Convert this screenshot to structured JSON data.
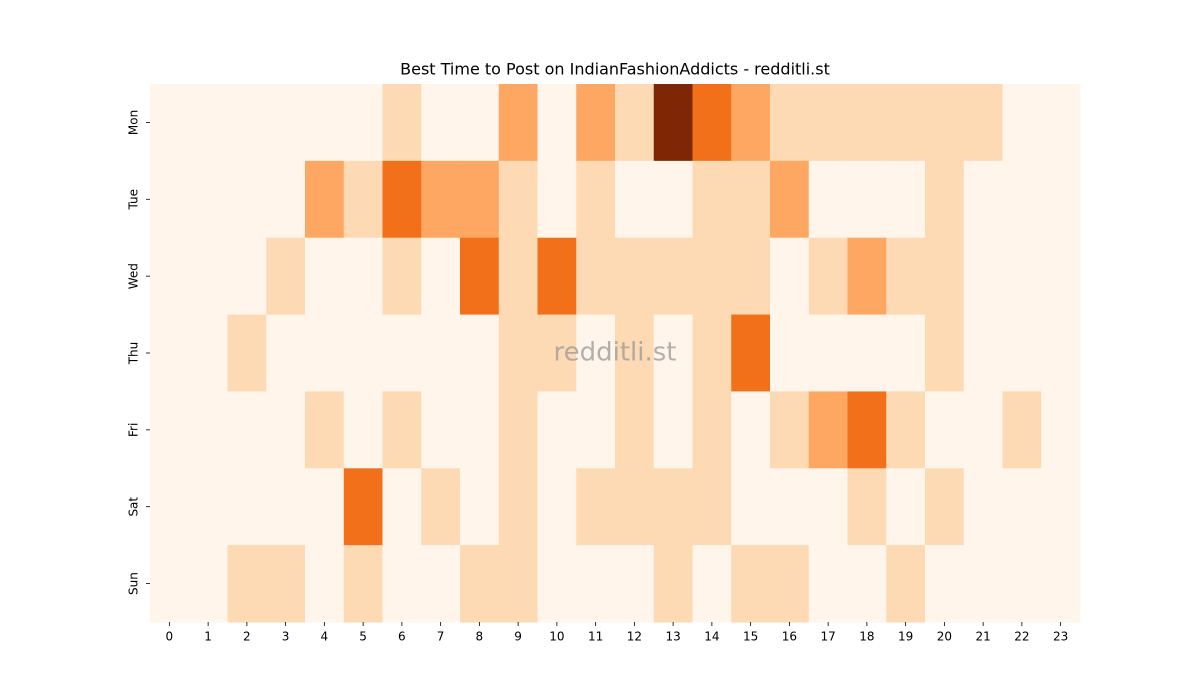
{
  "chart_data": {
    "type": "heatmap",
    "title": "Best Time to Post on IndianFashionAddicts - redditli.st",
    "watermark": "redditli.st",
    "x": [
      0,
      1,
      2,
      3,
      4,
      5,
      6,
      7,
      8,
      9,
      10,
      11,
      12,
      13,
      14,
      15,
      16,
      17,
      18,
      19,
      20,
      21,
      22,
      23
    ],
    "y": [
      "Mon",
      "Tue",
      "Wed",
      "Thu",
      "Fri",
      "Sat",
      "Sun"
    ],
    "values": [
      [
        0,
        0,
        0,
        0,
        0,
        0,
        1,
        0,
        0,
        2,
        0,
        2,
        1,
        4,
        3,
        2,
        1,
        1,
        1,
        1,
        1,
        1,
        0,
        0
      ],
      [
        0,
        0,
        0,
        0,
        2,
        1,
        3,
        2,
        2,
        1,
        0,
        1,
        0,
        0,
        1,
        1,
        2,
        0,
        0,
        0,
        1,
        0,
        0,
        0
      ],
      [
        0,
        0,
        0,
        1,
        0,
        0,
        1,
        0,
        3,
        1,
        3,
        1,
        1,
        1,
        1,
        1,
        0,
        1,
        2,
        1,
        1,
        0,
        0,
        0
      ],
      [
        0,
        0,
        1,
        0,
        0,
        0,
        0,
        0,
        0,
        1,
        1,
        0,
        1,
        0,
        1,
        3,
        0,
        0,
        0,
        0,
        1,
        0,
        0,
        0
      ],
      [
        0,
        0,
        0,
        0,
        1,
        0,
        1,
        0,
        0,
        1,
        0,
        0,
        1,
        0,
        1,
        0,
        1,
        2,
        3,
        1,
        0,
        0,
        1,
        0
      ],
      [
        0,
        0,
        0,
        0,
        0,
        3,
        0,
        1,
        0,
        1,
        0,
        1,
        1,
        1,
        1,
        0,
        0,
        0,
        1,
        0,
        1,
        0,
        0,
        0
      ],
      [
        0,
        0,
        1,
        1,
        0,
        1,
        0,
        0,
        1,
        1,
        0,
        0,
        0,
        1,
        0,
        1,
        1,
        0,
        0,
        1,
        0,
        0,
        0,
        0
      ]
    ],
    "colormap": [
      "#fff5eb",
      "#fdd9b4",
      "#fda762",
      "#f3701b",
      "#7f2704"
    ],
    "vlim": [
      0,
      4
    ]
  }
}
